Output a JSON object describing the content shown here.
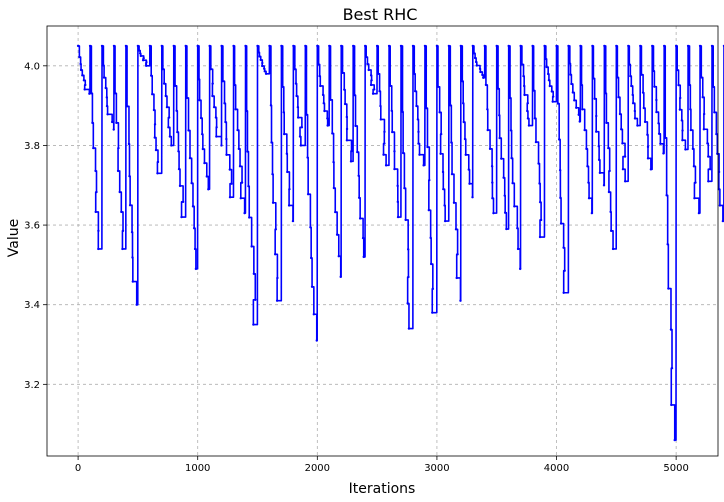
{
  "chart_data": {
    "type": "line",
    "title": "Best RHC",
    "xlabel": "Iterations",
    "ylabel": "Value",
    "xlim": [
      -260,
      5350
    ],
    "ylim": [
      3.02,
      4.1
    ],
    "x_ticks": [
      0,
      1000,
      2000,
      3000,
      4000,
      5000
    ],
    "x_tick_labels": [
      "0",
      "1000",
      "2000",
      "3000",
      "4000",
      "5000"
    ],
    "y_ticks": [
      3.2,
      3.4,
      3.6,
      3.8,
      4.0
    ],
    "y_tick_labels": [
      "3.2",
      "3.4",
      "3.6",
      "3.8",
      "4.0"
    ],
    "grid": true,
    "grid_style": "dashed",
    "line_color": "#0000ff",
    "restart_length": 100,
    "restart_value": 4.05,
    "series": [
      {
        "restart_minima": [
          3.93,
          3.54,
          3.84,
          3.54,
          3.4,
          4.0,
          3.73,
          3.8,
          3.62,
          3.49,
          3.69,
          3.8,
          3.67,
          3.63,
          3.35,
          3.98,
          3.41,
          3.61,
          3.8,
          3.31,
          3.85,
          3.47,
          3.76,
          3.52,
          3.93,
          3.75,
          3.62,
          3.34,
          3.75,
          3.38,
          3.61,
          3.41,
          3.67,
          3.97,
          3.63,
          3.59,
          3.49,
          3.85,
          3.57,
          3.91,
          3.43,
          3.86,
          3.63,
          3.7,
          3.54,
          3.71,
          3.85,
          3.74,
          3.78,
          3.06,
          3.79,
          3.63,
          3.71,
          3.61,
          3.72,
          3.73,
          3.46,
          3.88,
          3.62,
          3.73,
          3.47,
          3.63,
          3.48,
          3.57,
          3.81,
          3.44,
          3.72,
          3.59,
          3.8,
          3.6,
          3.73,
          3.67,
          3.48,
          3.34,
          3.62,
          3.58,
          3.36,
          3.74,
          3.37,
          3.62,
          3.67,
          3.63,
          3.51,
          3.3,
          3.71,
          3.58
        ],
        "final_value": 3.51
      }
    ]
  }
}
